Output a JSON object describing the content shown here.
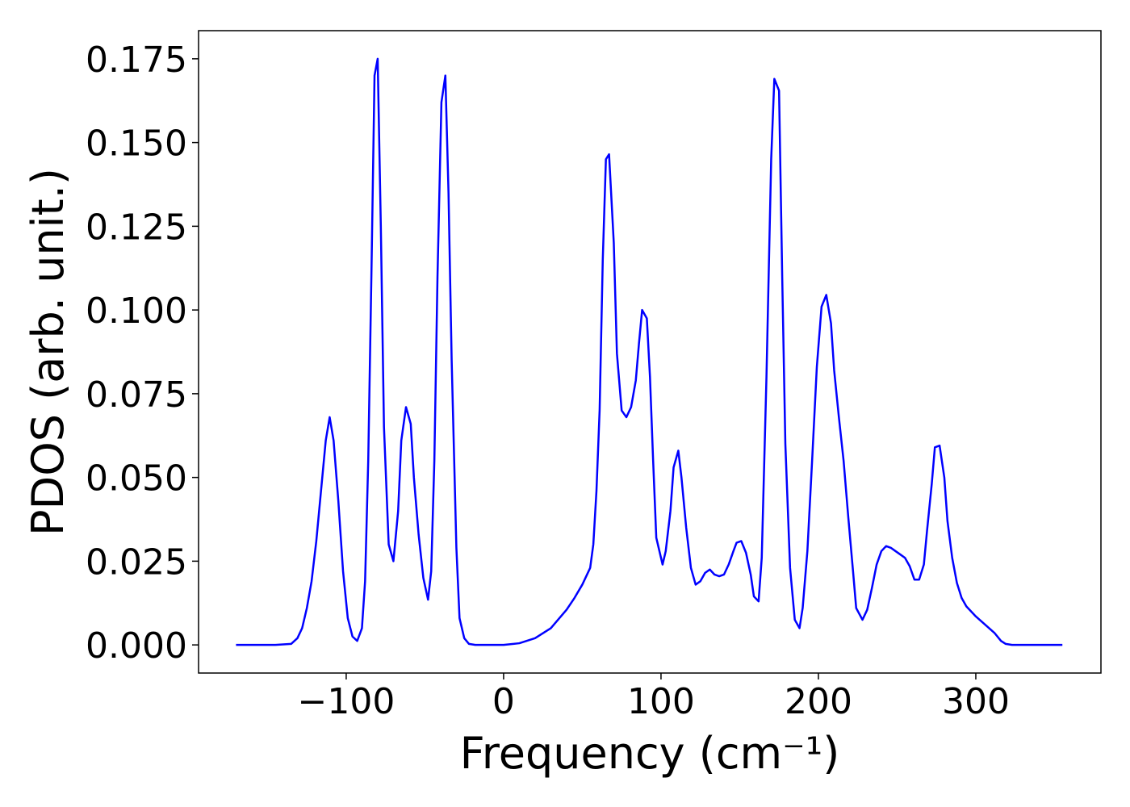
{
  "chart_data": {
    "type": "line",
    "x_label": "Frequency (cm⁻¹)",
    "y_label": "PDOS (arb. unit.)",
    "xlim": [
      -193.8,
      379.5
    ],
    "ylim": [
      -0.0084,
      0.1834
    ],
    "xticks": [
      {
        "value": -100,
        "label": "−100"
      },
      0,
      100,
      200,
      300
    ],
    "yticks": [
      {
        "value": 0,
        "label": "0.000"
      },
      {
        "value": 0.025,
        "label": "0.025"
      },
      {
        "value": 0.05,
        "label": "0.050"
      },
      {
        "value": 0.075,
        "label": "0.075"
      },
      {
        "value": 0.1,
        "label": "0.100"
      },
      {
        "value": 0.125,
        "label": "0.125"
      },
      {
        "value": 0.15,
        "label": "0.150"
      },
      {
        "value": 0.175,
        "label": "0.175"
      }
    ],
    "grid": false,
    "series": [
      {
        "color": "#0000ff",
        "x": [
          -170,
          -145,
          -135,
          -131,
          -128,
          -125,
          -122,
          -119,
          -116,
          -113,
          -110.5,
          -108,
          -105,
          -102,
          -99,
          -96,
          -93,
          -90,
          -88,
          -86,
          -84,
          -82,
          -80,
          -78,
          -76,
          -73,
          -70,
          -67,
          -65,
          -62,
          -59,
          -57,
          -54,
          -51,
          -48,
          -46,
          -44,
          -42,
          -39.5,
          -37,
          -35,
          -33,
          -30,
          -28,
          -25,
          -22,
          -18,
          0,
          10,
          20,
          30,
          40,
          45,
          50,
          55,
          57,
          59,
          61,
          63,
          65,
          67,
          70,
          72,
          75,
          78,
          81,
          84,
          86,
          88,
          91,
          93,
          95,
          97,
          101,
          103,
          106,
          108,
          111,
          113,
          116,
          119,
          122,
          125,
          128,
          131,
          134,
          137,
          140,
          143,
          146,
          148,
          151,
          154,
          157,
          159,
          162,
          164,
          167,
          170,
          172,
          175,
          177,
          179,
          182,
          185,
          188,
          190,
          193,
          196,
          199,
          202,
          205,
          208,
          210,
          213,
          216,
          219,
          222,
          224,
          228,
          231,
          234,
          237,
          240,
          243,
          246,
          249,
          252,
          255,
          258,
          261,
          264,
          267,
          269,
          272,
          274,
          277,
          280,
          282,
          285,
          288,
          291,
          294,
          300,
          306,
          312,
          316,
          319,
          323,
          355
        ],
        "values": [
          0,
          0,
          0.0003,
          0.002,
          0.005,
          0.011,
          0.019,
          0.031,
          0.046,
          0.061,
          0.068,
          0.061,
          0.043,
          0.022,
          0.008,
          0.0025,
          0.0012,
          0.005,
          0.019,
          0.055,
          0.11,
          0.17,
          0.175,
          0.125,
          0.065,
          0.03,
          0.025,
          0.04,
          0.061,
          0.071,
          0.066,
          0.05,
          0.033,
          0.02,
          0.0135,
          0.022,
          0.055,
          0.11,
          0.162,
          0.17,
          0.135,
          0.085,
          0.029,
          0.008,
          0.002,
          0.0003,
          0,
          0,
          0.0005,
          0.002,
          0.005,
          0.0105,
          0.014,
          0.018,
          0.023,
          0.03,
          0.046,
          0.07,
          0.115,
          0.145,
          0.1465,
          0.12,
          0.087,
          0.07,
          0.068,
          0.071,
          0.079,
          0.09,
          0.1,
          0.0975,
          0.08,
          0.055,
          0.032,
          0.024,
          0.028,
          0.04,
          0.053,
          0.058,
          0.05,
          0.035,
          0.023,
          0.018,
          0.019,
          0.0215,
          0.0225,
          0.021,
          0.0205,
          0.021,
          0.024,
          0.028,
          0.0305,
          0.031,
          0.0275,
          0.021,
          0.0145,
          0.013,
          0.026,
          0.08,
          0.145,
          0.169,
          0.1655,
          0.11,
          0.06,
          0.023,
          0.0075,
          0.005,
          0.011,
          0.028,
          0.055,
          0.083,
          0.101,
          0.1045,
          0.096,
          0.082,
          0.068,
          0.055,
          0.038,
          0.022,
          0.011,
          0.0075,
          0.0105,
          0.017,
          0.024,
          0.028,
          0.0295,
          0.029,
          0.028,
          0.027,
          0.026,
          0.0235,
          0.0195,
          0.0195,
          0.024,
          0.034,
          0.048,
          0.059,
          0.0595,
          0.05,
          0.037,
          0.026,
          0.0185,
          0.014,
          0.0115,
          0.0085,
          0.006,
          0.0035,
          0.0012,
          0.0003,
          0,
          0
        ]
      }
    ]
  }
}
